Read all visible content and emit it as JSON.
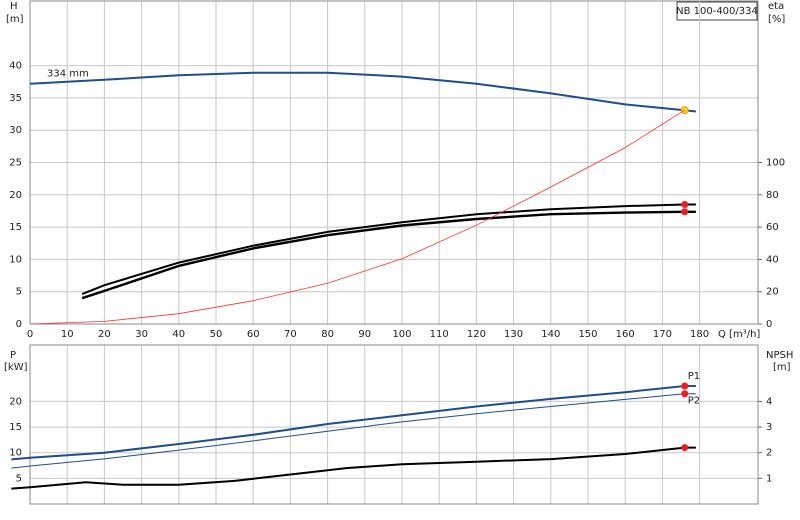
{
  "chart_data": [
    {
      "type": "line",
      "title": "NB 100-400/334",
      "ylabel": "H",
      "yunit": "[m]",
      "y2label": "eta",
      "y2unit": "[%]",
      "xlabel": "Q [m³/h]",
      "xlim": [
        0,
        195.7
      ],
      "xticks": [
        0,
        10,
        20,
        30,
        40,
        50,
        60,
        70,
        80,
        90,
        100,
        110,
        120,
        130,
        140,
        150,
        160,
        170,
        180
      ],
      "ylim": [
        0,
        50
      ],
      "yticks": [
        0,
        5,
        10,
        15,
        20,
        25,
        30,
        35,
        40
      ],
      "y2lim": [
        0,
        200
      ],
      "y2ticks": [
        0,
        20,
        40,
        60,
        80,
        100
      ],
      "grid": true,
      "series": [
        {
          "name": "334 mm",
          "color": "#1f4e8c",
          "marker_color": "#ffd21f",
          "x": [
            0,
            20,
            40,
            60,
            80,
            100,
            120,
            140,
            160,
            176,
            179
          ],
          "values": [
            37.2,
            37.8,
            38.5,
            38.9,
            38.9,
            38.3,
            37.2,
            35.7,
            34.0,
            33.1,
            32.9
          ]
        },
        {
          "color": "#000000",
          "axis": "y2",
          "marker_color": "#ee1c1c",
          "x": [
            14,
            20,
            40,
            60,
            80,
            100,
            120,
            140,
            160,
            176,
            179
          ],
          "values": [
            18.5,
            24,
            38,
            48.5,
            57,
            63,
            68,
            71,
            73,
            74,
            74
          ]
        },
        {
          "color": "#000000",
          "axis": "y2",
          "marker_color": "#ee1c1c",
          "x": [
            14,
            20,
            40,
            60,
            80,
            100,
            120,
            140,
            160,
            176,
            179
          ],
          "values": [
            16,
            20.5,
            36,
            46.8,
            55,
            61,
            65,
            68,
            69,
            69.5,
            69.5
          ]
        },
        {
          "color": "#ff3030",
          "x": [
            0,
            20,
            40,
            60,
            80,
            100,
            120,
            140,
            160,
            176
          ],
          "values": [
            0,
            0.4,
            1.6,
            3.6,
            6.3,
            10.1,
            15.3,
            21.2,
            27.3,
            33.1
          ]
        }
      ]
    },
    {
      "type": "line",
      "ylabel": "P",
      "yunit": "[kW]",
      "y2label": "NPSH",
      "y2unit": "[m]",
      "xlim": [
        0,
        195.7
      ],
      "ylim": [
        0,
        31
      ],
      "yticks": [
        5,
        10,
        15,
        20
      ],
      "y2lim": [
        0,
        6.2
      ],
      "y2ticks": [
        1,
        2,
        3,
        4
      ],
      "grid": true,
      "series": [
        {
          "name": "P1",
          "color": "#1f4e8c",
          "marker_color": "#ee1c1c",
          "x": [
            -5,
            0,
            20,
            40,
            60,
            80,
            100,
            120,
            140,
            160,
            176,
            179
          ],
          "values": [
            8.7,
            9.0,
            10.0,
            11.7,
            13.5,
            15.6,
            17.3,
            19.0,
            20.5,
            21.8,
            23.0,
            23.0
          ]
        },
        {
          "name": "P2",
          "color": "#1f4e8c",
          "marker_color": "#ee1c1c",
          "x": [
            -5,
            0,
            20,
            40,
            60,
            80,
            100,
            120,
            140,
            160,
            176,
            179
          ],
          "values": [
            7.0,
            7.4,
            8.8,
            10.5,
            12.3,
            14.2,
            16.0,
            17.6,
            19.0,
            20.4,
            21.5,
            21.5
          ]
        },
        {
          "color": "#000000",
          "axis": "y2",
          "marker_color": "#ee1c1c",
          "x": [
            -5,
            0,
            15,
            25,
            40,
            55,
            70,
            85,
            100,
            120,
            140,
            160,
            176,
            179
          ],
          "values": [
            0.6,
            0.65,
            0.85,
            0.75,
            0.75,
            0.9,
            1.15,
            1.4,
            1.55,
            1.65,
            1.75,
            1.95,
            2.2,
            2.2
          ]
        }
      ]
    }
  ]
}
